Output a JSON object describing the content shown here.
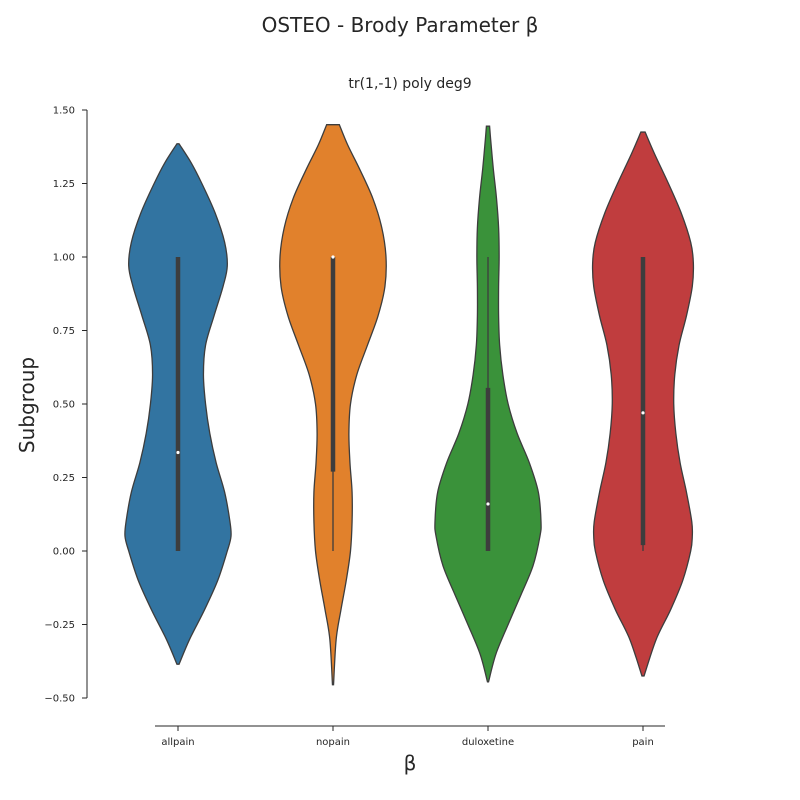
{
  "chart_data": {
    "type": "violin",
    "title": "OSTEO - Brody Parameter β",
    "subtitle": "tr(1,-1) poly deg9",
    "xlabel": "β",
    "ylabel": "Subgroup",
    "ylim": [
      -0.5,
      1.5
    ],
    "yticks": [
      -0.5,
      -0.25,
      0.0,
      0.25,
      0.5,
      0.75,
      1.0,
      1.25,
      1.5
    ],
    "ytick_labels": [
      "−0.50",
      "−0.25",
      "0.00",
      "0.25",
      "0.50",
      "0.75",
      "1.00",
      "1.25",
      "1.50"
    ],
    "categories": [
      "allpain",
      "nopain",
      "duloxetine",
      "pain"
    ],
    "grid": false,
    "series": [
      {
        "category": "allpain",
        "color": "#3274a1",
        "range": [
          -0.385,
          1.385
        ],
        "density": [
          [
            -0.385,
            0.02
          ],
          [
            -0.3,
            0.22
          ],
          [
            -0.2,
            0.5
          ],
          [
            -0.1,
            0.75
          ],
          [
            0.0,
            0.93
          ],
          [
            0.05,
            1.0
          ],
          [
            0.1,
            0.98
          ],
          [
            0.2,
            0.88
          ],
          [
            0.3,
            0.72
          ],
          [
            0.4,
            0.6
          ],
          [
            0.5,
            0.52
          ],
          [
            0.6,
            0.48
          ],
          [
            0.7,
            0.52
          ],
          [
            0.8,
            0.68
          ],
          [
            0.9,
            0.85
          ],
          [
            0.97,
            0.93
          ],
          [
            1.05,
            0.88
          ],
          [
            1.15,
            0.7
          ],
          [
            1.25,
            0.45
          ],
          [
            1.32,
            0.25
          ],
          [
            1.385,
            0.02
          ]
        ],
        "box": {
          "q1": 0.0,
          "median": 0.335,
          "q3": 1.0,
          "whisker_low": 0.0,
          "whisker_high": 1.0
        }
      },
      {
        "category": "nopain",
        "color": "#e1812c",
        "range": [
          -0.455,
          1.45
        ],
        "density": [
          [
            -0.455,
            0.01
          ],
          [
            -0.3,
            0.06
          ],
          [
            -0.2,
            0.15
          ],
          [
            -0.1,
            0.25
          ],
          [
            0.0,
            0.33
          ],
          [
            0.1,
            0.36
          ],
          [
            0.2,
            0.36
          ],
          [
            0.3,
            0.32
          ],
          [
            0.4,
            0.3
          ],
          [
            0.5,
            0.33
          ],
          [
            0.6,
            0.45
          ],
          [
            0.7,
            0.65
          ],
          [
            0.8,
            0.85
          ],
          [
            0.9,
            0.98
          ],
          [
            1.0,
            1.0
          ],
          [
            1.1,
            0.92
          ],
          [
            1.2,
            0.75
          ],
          [
            1.3,
            0.5
          ],
          [
            1.38,
            0.28
          ],
          [
            1.45,
            0.12
          ]
        ],
        "box": {
          "q1": 0.27,
          "median": 1.0,
          "q3": 1.0,
          "whisker_low": 0.0,
          "whisker_high": 1.0
        }
      },
      {
        "category": "duloxetine",
        "color": "#3a923a",
        "range": [
          -0.445,
          1.445
        ],
        "density": [
          [
            -0.445,
            0.01
          ],
          [
            -0.35,
            0.15
          ],
          [
            -0.25,
            0.38
          ],
          [
            -0.15,
            0.62
          ],
          [
            -0.05,
            0.85
          ],
          [
            0.05,
            0.98
          ],
          [
            0.1,
            1.0
          ],
          [
            0.2,
            0.95
          ],
          [
            0.3,
            0.78
          ],
          [
            0.4,
            0.55
          ],
          [
            0.5,
            0.38
          ],
          [
            0.6,
            0.28
          ],
          [
            0.7,
            0.22
          ],
          [
            0.8,
            0.2
          ],
          [
            0.9,
            0.2
          ],
          [
            1.0,
            0.21
          ],
          [
            1.1,
            0.2
          ],
          [
            1.2,
            0.16
          ],
          [
            1.3,
            0.1
          ],
          [
            1.4,
            0.05
          ],
          [
            1.445,
            0.03
          ]
        ],
        "box": {
          "q1": 0.0,
          "median": 0.16,
          "q3": 0.555,
          "whisker_low": 0.0,
          "whisker_high": 1.0
        }
      },
      {
        "category": "pain",
        "color": "#c03d3e",
        "range": [
          -0.425,
          1.425
        ],
        "density": [
          [
            -0.425,
            0.02
          ],
          [
            -0.3,
            0.25
          ],
          [
            -0.2,
            0.52
          ],
          [
            -0.1,
            0.75
          ],
          [
            0.0,
            0.9
          ],
          [
            0.05,
            0.93
          ],
          [
            0.1,
            0.92
          ],
          [
            0.2,
            0.82
          ],
          [
            0.3,
            0.7
          ],
          [
            0.4,
            0.62
          ],
          [
            0.5,
            0.58
          ],
          [
            0.6,
            0.6
          ],
          [
            0.7,
            0.68
          ],
          [
            0.8,
            0.82
          ],
          [
            0.9,
            0.93
          ],
          [
            0.98,
            0.95
          ],
          [
            1.05,
            0.9
          ],
          [
            1.15,
            0.72
          ],
          [
            1.25,
            0.48
          ],
          [
            1.35,
            0.22
          ],
          [
            1.425,
            0.04
          ]
        ],
        "box": {
          "q1": 0.02,
          "median": 0.47,
          "q3": 1.0,
          "whisker_low": 0.0,
          "whisker_high": 1.0
        }
      }
    ]
  }
}
